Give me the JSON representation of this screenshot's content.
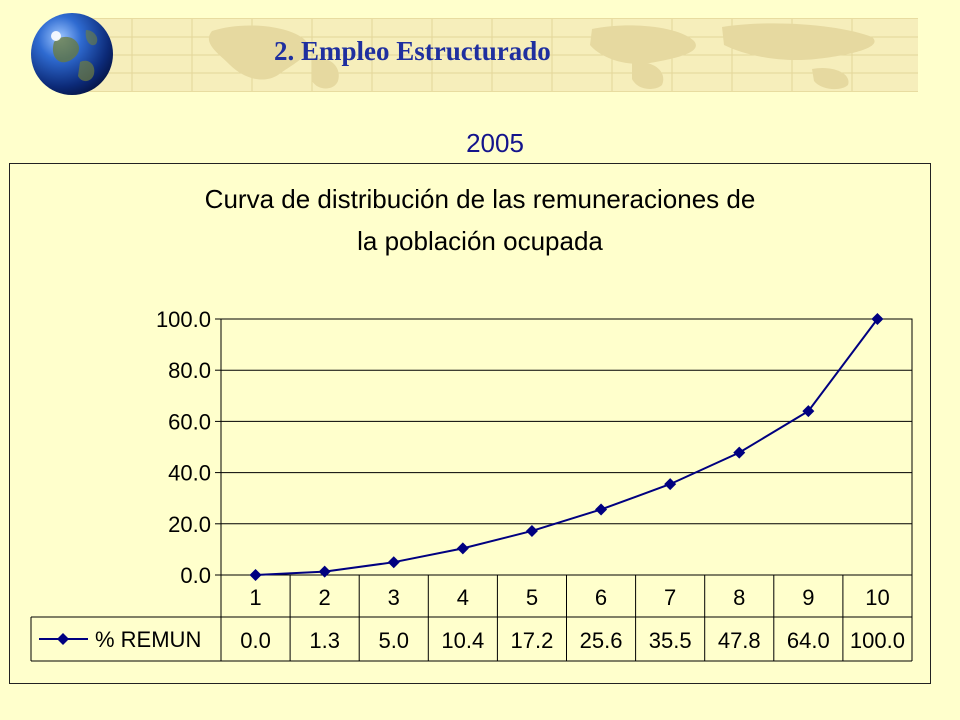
{
  "header": {
    "title": "2. Empleo Estructurado",
    "subtitle": "2005"
  },
  "colors": {
    "background": "#ffffcc",
    "title": "#1f2f9f",
    "series": "#000080"
  },
  "chart_data": {
    "type": "line",
    "title_lines": [
      "Curva de distribución de las remuneraciones de",
      "la población ocupada"
    ],
    "categories": [
      "1",
      "2",
      "3",
      "4",
      "5",
      "6",
      "7",
      "8",
      "9",
      "10"
    ],
    "series": [
      {
        "name": "% REMUN",
        "values": [
          0.0,
          1.3,
          5.0,
          10.4,
          17.2,
          25.6,
          35.5,
          47.8,
          64.0,
          100.0
        ]
      }
    ],
    "table_values": [
      "0.0",
      "1.3",
      "5.0",
      "10.4",
      "17.2",
      "25.6",
      "35.5",
      "47.8",
      "64.0",
      "100.0"
    ],
    "y_ticks": [
      "0.0",
      "20.0",
      "40.0",
      "60.0",
      "80.0",
      "100.0"
    ],
    "ylim": [
      0,
      100
    ],
    "grid": true,
    "legend": "data-table",
    "marker": "diamond"
  }
}
